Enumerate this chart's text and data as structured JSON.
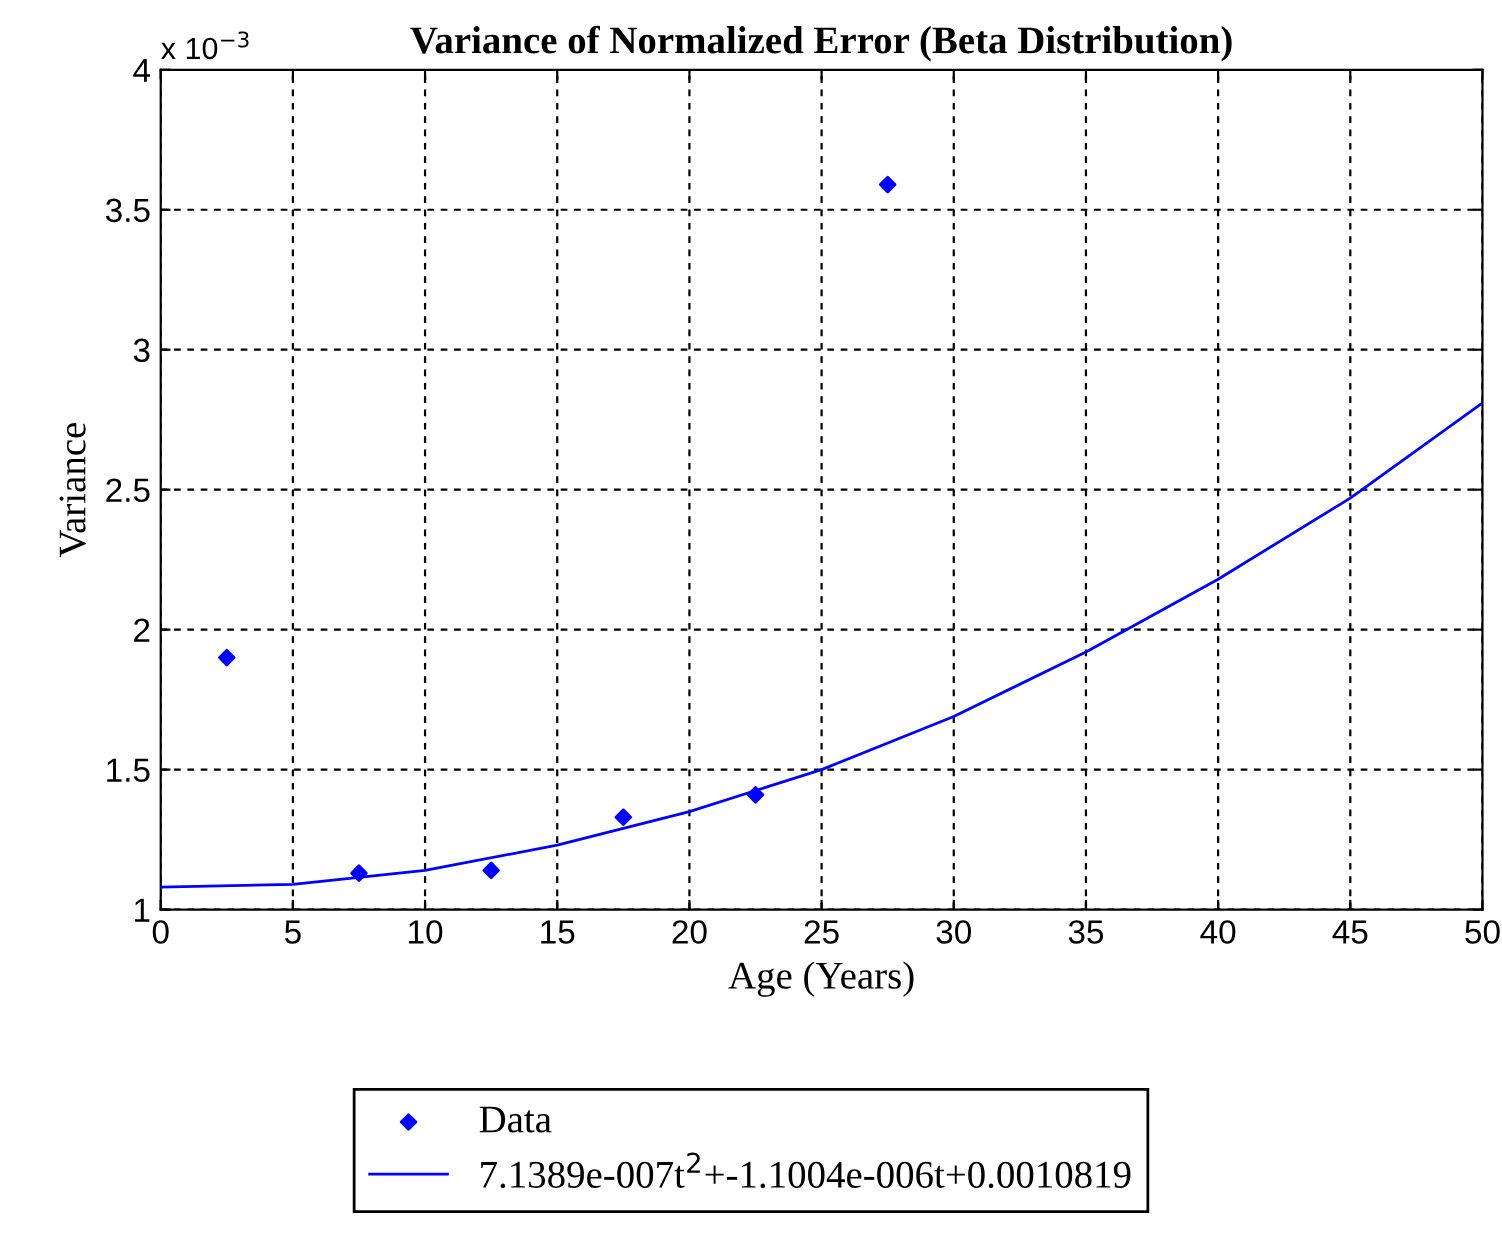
{
  "chart_data": {
    "type": "scatter",
    "title": "Variance of Normalized Error (Beta Distribution)",
    "xlabel": "Age (Years)",
    "ylabel": "Variance",
    "annotations": [
      "x 10$^{−3}$"
    ],
    "series": [
      {
        "name": "Data",
        "color": "#0000ff",
        "marker": "diamond",
        "x": [
          2.5,
          7.5,
          12.5,
          17.5,
          22.5,
          27.5
        ],
        "values": [
          1.9,
          1.13,
          1.14,
          1.33,
          1.41,
          3.59
        ]
      },
      {
        "name": "7.1389e-007t$^{2}$+-1.1004e-006t+0.0010819",
        "type": "line",
        "color": "#0000ff",
        "line_style": "solid",
        "marker": "none",
        "x": [
          0,
          5,
          10,
          15,
          20,
          25,
          30,
          35,
          40,
          45,
          50
        ],
        "values": [
          1.08,
          1.09,
          1.14,
          1.23,
          1.35,
          1.5,
          1.69,
          1.92,
          2.18,
          2.47,
          2.81
        ]
      }
    ],
    "xlim": [
      0,
      50
    ],
    "xticks": [
      0,
      5,
      10,
      15,
      20,
      25,
      30,
      35,
      40,
      45,
      50
    ],
    "ylim": [
      1,
      4
    ],
    "yticks": [
      1,
      1.5,
      2,
      2.5,
      3,
      3.5,
      4
    ],
    "grid": true,
    "legend": "bottom"
  }
}
